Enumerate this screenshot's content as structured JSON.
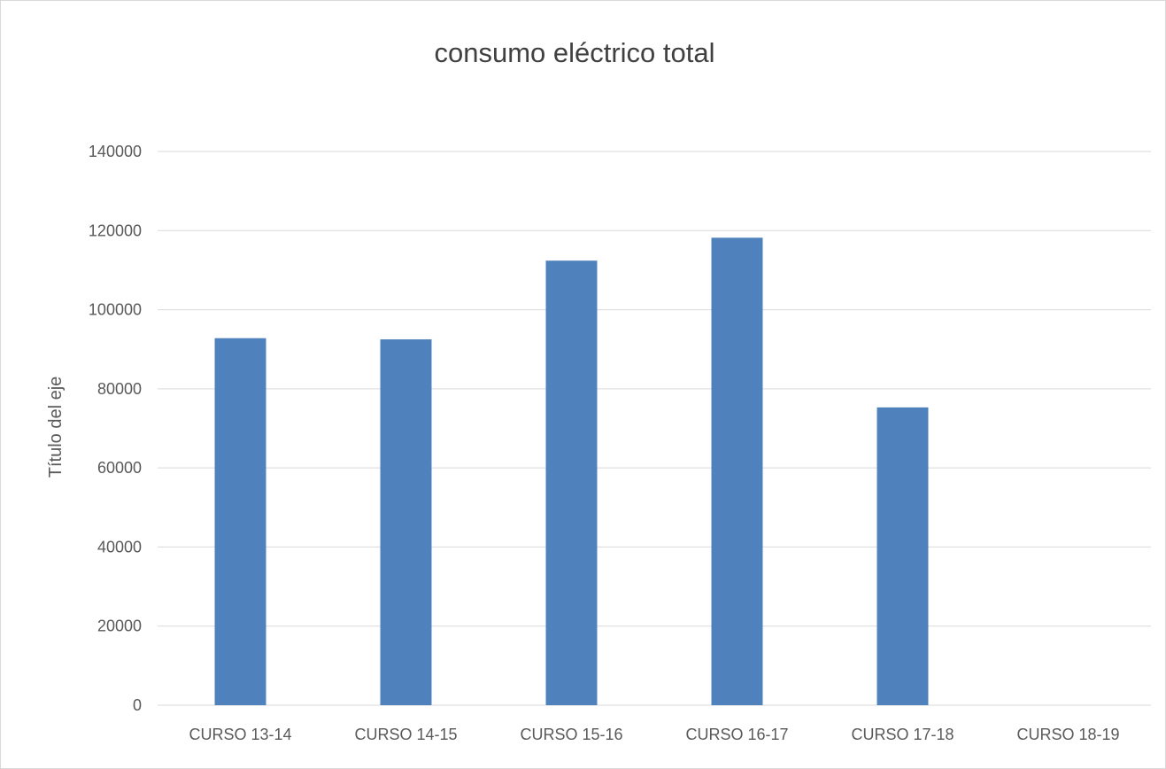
{
  "chart_data": {
    "type": "bar",
    "title": "consumo eléctrico total",
    "xlabel": "",
    "ylabel": "Título del eje",
    "categories": [
      "CURSO 13-14",
      "CURSO 14-15",
      "CURSO 15-16",
      "CURSO 16-17",
      "CURSO 17-18",
      "CURSO 18-19"
    ],
    "values": [
      92800,
      92500,
      112400,
      118200,
      75300,
      0
    ],
    "ylim": [
      0,
      140000
    ],
    "yticks": [
      0,
      20000,
      40000,
      60000,
      80000,
      100000,
      120000,
      140000
    ],
    "ytick_labels": [
      "0",
      "20000",
      "40000",
      "60000",
      "80000",
      "100000",
      "120000",
      "140000"
    ],
    "grid": true,
    "legend": "none",
    "bar_color": "#4f81bd",
    "grid_color": "#d9d9d9"
  }
}
